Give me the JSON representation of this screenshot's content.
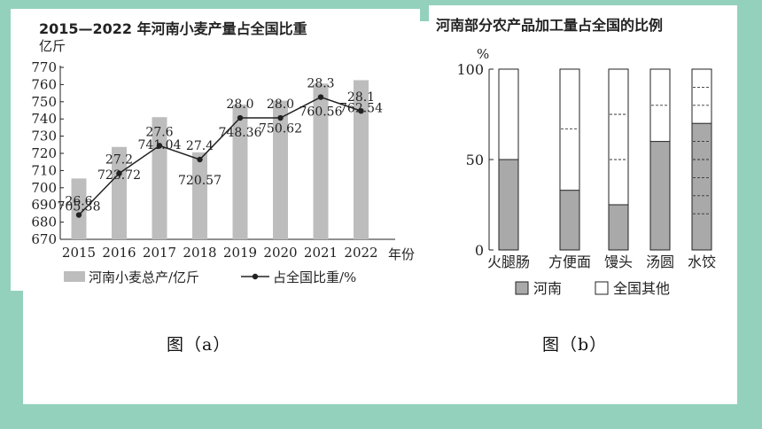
{
  "captions": {
    "a": "图（a）",
    "b": "图（b）"
  },
  "chart_data": [
    {
      "type": "bar",
      "title": "2015—2022 年河南小麦产量占全国比重",
      "ylabel": "亿斤",
      "xlabel": "年份",
      "ylim": [
        670,
        770
      ],
      "yticks": [
        670,
        680,
        690,
        700,
        710,
        720,
        730,
        740,
        750,
        760,
        770
      ],
      "categories": [
        "2015",
        "2016",
        "2017",
        "2018",
        "2019",
        "2020",
        "2021",
        "2022"
      ],
      "series": [
        {
          "name": "河南小麦总产/亿斤",
          "type": "bar",
          "values": [
            705.38,
            723.72,
            741.04,
            720.57,
            748.36,
            750.62,
            760.56,
            762.54
          ],
          "labels": [
            "705.38",
            "723.72",
            "741.04",
            "720.57",
            "748.36",
            "750.62",
            "760.56",
            "762.54"
          ]
        },
        {
          "name": "占全国比重/%",
          "type": "line",
          "values": [
            26.6,
            27.2,
            27.6,
            27.4,
            28.0,
            28.0,
            28.3,
            28.1
          ],
          "labels": [
            "26.6",
            "27.2",
            "27.6",
            "27.4",
            "28.0",
            "28.0",
            "28.3",
            "28.1"
          ]
        }
      ],
      "legend": [
        "河南小麦总产/亿斤",
        "占全国比重/%"
      ],
      "legend_position": "bottom",
      "colors": {
        "bar": "#bdbdbd",
        "line": "#222222"
      }
    },
    {
      "type": "bar",
      "stacked": true,
      "title": "河南部分农产品加工量占全国的比例",
      "ylabel": "%",
      "ylim": [
        0,
        100
      ],
      "yticks": [
        0,
        50,
        100
      ],
      "categories": [
        "火腿肠",
        "方便面",
        "馒头",
        "汤圆",
        "水饺"
      ],
      "series": [
        {
          "name": "河南",
          "values": [
            50,
            33,
            25,
            60,
            70
          ]
        },
        {
          "name": "全国其他",
          "values": [
            50,
            67,
            75,
            40,
            30
          ]
        }
      ],
      "legend": [
        "河南",
        "全国其他"
      ],
      "legend_position": "bottom",
      "colors": {
        "河南": "#a9a9a9",
        "全国其他": "#ffffff"
      }
    }
  ]
}
